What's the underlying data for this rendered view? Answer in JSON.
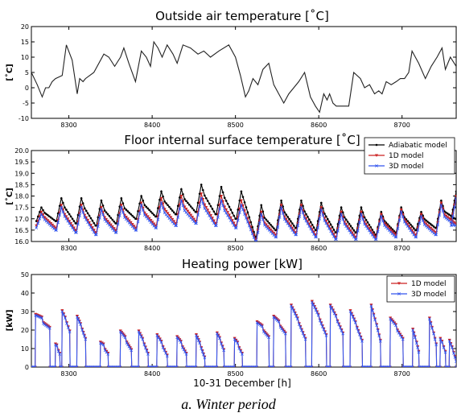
{
  "figure": {
    "xlabel": "10-31 December [h]",
    "caption": "a.    Winter period"
  },
  "chart_data": [
    {
      "type": "line",
      "title": "Outside air temperature [˚C]",
      "xlabel": "",
      "ylabel": "[˚C]",
      "xlim": [
        8255,
        8765
      ],
      "ylim": [
        -10,
        20
      ],
      "xticks": [
        8300,
        8400,
        8500,
        8600,
        8700
      ],
      "yticks": [
        -10,
        -5,
        0,
        5,
        10,
        15,
        20
      ],
      "grid": false,
      "legend": "none",
      "series": [
        {
          "color": "#222222",
          "marker": "none",
          "x": [
            8255,
            8262,
            8268,
            8272,
            8276,
            8280,
            8284,
            8292,
            8297,
            8304,
            8310,
            8313,
            8317,
            8320,
            8330,
            8342,
            8348,
            8355,
            8362,
            8366,
            8372,
            8380,
            8387,
            8393,
            8398,
            8402,
            8407,
            8412,
            8418,
            8425,
            8430,
            8437,
            8446,
            8455,
            8462,
            8470,
            8480,
            8492,
            8500,
            8506,
            8512,
            8516,
            8521,
            8527,
            8533,
            8540,
            8546,
            8552,
            8558,
            8564,
            8570,
            8576,
            8583,
            8590,
            8596,
            8601,
            8606,
            8610,
            8613,
            8617,
            8621,
            8627,
            8636,
            8642,
            8650,
            8655,
            8661,
            8667,
            8672,
            8676,
            8681,
            8687,
            8693,
            8698,
            8703,
            8708,
            8712,
            8720,
            8728,
            8735,
            8742,
            8748,
            8752,
            8758,
            8765
          ],
          "values": [
            5,
            1,
            -3,
            0,
            0,
            2,
            3,
            4,
            14,
            9,
            -2,
            3,
            2,
            3,
            5,
            11,
            10,
            7,
            10,
            13,
            8,
            2,
            12,
            10,
            7,
            15,
            13,
            10,
            14,
            11,
            8,
            14,
            13,
            11,
            12,
            10,
            12,
            14,
            10,
            4,
            -3,
            -1,
            3,
            1,
            6,
            8,
            1,
            -2,
            -5,
            -2,
            0,
            2,
            5,
            -3,
            -6,
            -8,
            -2,
            -4,
            -2,
            -5,
            -6,
            -6,
            -6,
            5,
            3,
            0,
            1,
            -2,
            -1,
            -2,
            2,
            1,
            2,
            3,
            3,
            5,
            12,
            8,
            3,
            7,
            10,
            13,
            6,
            10,
            7
          ]
        }
      ]
    },
    {
      "type": "line",
      "title": "Floor internal surface temperature [˚C]",
      "xlabel": "",
      "ylabel": "[˚C]",
      "xlim": [
        8255,
        8765
      ],
      "ylim": [
        16.0,
        20.0
      ],
      "xticks": [
        8300,
        8400,
        8500,
        8600,
        8700
      ],
      "yticks": [
        16.0,
        16.5,
        17.0,
        17.5,
        18.0,
        18.5,
        19.0,
        19.5,
        20.0
      ],
      "grid": false,
      "legend": "top-right",
      "period_hours": 24,
      "peak_x": [
        8267,
        8291,
        8315,
        8339,
        8363,
        8387,
        8411,
        8435,
        8459,
        8483,
        8507,
        8531,
        8555,
        8579,
        8603,
        8627,
        8651,
        8675,
        8699,
        8723,
        8747,
        8765
      ],
      "series": [
        {
          "name": "Adiabatic model",
          "color": "#000000",
          "marker": "dot",
          "peaks": [
            17.5,
            17.9,
            17.9,
            17.8,
            17.9,
            18.0,
            18.2,
            18.3,
            18.5,
            18.4,
            18.2,
            17.6,
            17.8,
            17.8,
            17.7,
            17.5,
            17.5,
            17.3,
            17.5,
            17.3,
            17.8,
            18.2
          ],
          "troughs": [
            16.9,
            16.9,
            16.8,
            16.7,
            16.8,
            17.0,
            17.1,
            17.2,
            17.3,
            17.2,
            17.0,
            16.2,
            16.5,
            16.6,
            16.5,
            16.4,
            16.4,
            16.3,
            16.4,
            16.5,
            16.6,
            17.0
          ]
        },
        {
          "name": "1D model",
          "color": "#cc2222",
          "marker": "triangle-down",
          "peaks": [
            17.3,
            17.6,
            17.6,
            17.5,
            17.6,
            17.7,
            17.9,
            18.0,
            18.1,
            18.0,
            17.8,
            17.3,
            17.6,
            17.6,
            17.5,
            17.3,
            17.3,
            17.2,
            17.4,
            17.2,
            17.7,
            18.0
          ],
          "troughs": [
            16.7,
            16.6,
            16.5,
            16.4,
            16.5,
            16.6,
            16.7,
            16.8,
            16.9,
            16.8,
            16.7,
            16.1,
            16.3,
            16.4,
            16.3,
            16.2,
            16.2,
            16.2,
            16.3,
            16.3,
            16.4,
            16.8
          ]
        },
        {
          "name": "3D model",
          "color": "#3355ee",
          "marker": "x",
          "peaks": [
            17.2,
            17.5,
            17.5,
            17.4,
            17.5,
            17.6,
            17.7,
            17.8,
            17.9,
            17.8,
            17.6,
            17.2,
            17.5,
            17.5,
            17.4,
            17.2,
            17.2,
            17.1,
            17.3,
            17.1,
            17.6,
            17.9
          ],
          "troughs": [
            16.6,
            16.5,
            16.4,
            16.3,
            16.4,
            16.5,
            16.6,
            16.7,
            16.8,
            16.7,
            16.6,
            16.0,
            16.2,
            16.3,
            16.2,
            16.1,
            16.1,
            16.1,
            16.2,
            16.2,
            16.3,
            16.7
          ]
        }
      ]
    },
    {
      "type": "line",
      "title": "Heating power [kW]",
      "xlabel": "10-31 December [h]",
      "ylabel": "[kW]",
      "xlim": [
        8255,
        8765
      ],
      "ylim": [
        0,
        50
      ],
      "xticks": [
        8300,
        8400,
        8500,
        8600,
        8700
      ],
      "yticks": [
        0,
        10,
        20,
        30,
        40,
        50
      ],
      "grid": false,
      "legend": "top-right",
      "series_layout": "on-off heating pulses; the 1D and 3D curves nearly coincide",
      "pulses": [
        {
          "on": 8260,
          "off": 8277,
          "start": 28,
          "end": 21
        },
        {
          "on": 8284,
          "off": 8289,
          "start": 12,
          "end": 7
        },
        {
          "on": 8292,
          "off": 8301,
          "start": 30,
          "end": 19
        },
        {
          "on": 8310,
          "off": 8320,
          "start": 27,
          "end": 15
        },
        {
          "on": 8338,
          "off": 8347,
          "start": 13,
          "end": 7
        },
        {
          "on": 8362,
          "off": 8375,
          "start": 19,
          "end": 9
        },
        {
          "on": 8384,
          "off": 8395,
          "start": 19,
          "end": 7
        },
        {
          "on": 8406,
          "off": 8418,
          "start": 17,
          "end": 6
        },
        {
          "on": 8430,
          "off": 8441,
          "start": 16,
          "end": 7
        },
        {
          "on": 8453,
          "off": 8463,
          "start": 17,
          "end": 5
        },
        {
          "on": 8478,
          "off": 8486,
          "start": 18,
          "end": 9
        },
        {
          "on": 8499,
          "off": 8508,
          "start": 15,
          "end": 7
        },
        {
          "on": 8526,
          "off": 8540,
          "start": 24,
          "end": 16
        },
        {
          "on": 8546,
          "off": 8560,
          "start": 27,
          "end": 18
        },
        {
          "on": 8567,
          "off": 8584,
          "start": 33,
          "end": 15
        },
        {
          "on": 8592,
          "off": 8609,
          "start": 35,
          "end": 17
        },
        {
          "on": 8614,
          "off": 8629,
          "start": 33,
          "end": 18
        },
        {
          "on": 8638,
          "off": 8652,
          "start": 30,
          "end": 14
        },
        {
          "on": 8663,
          "off": 8674,
          "start": 33,
          "end": 14
        },
        {
          "on": 8686,
          "off": 8701,
          "start": 26,
          "end": 15
        },
        {
          "on": 8713,
          "off": 8720,
          "start": 20,
          "end": 8
        },
        {
          "on": 8733,
          "off": 8741,
          "start": 26,
          "end": 12
        },
        {
          "on": 8746,
          "off": 8752,
          "start": 15,
          "end": 8
        },
        {
          "on": 8757,
          "off": 8765,
          "start": 14,
          "end": 3
        }
      ],
      "series": [
        {
          "name": "1D model",
          "color": "#cc2222",
          "marker": "triangle-down",
          "offset": 0.6
        },
        {
          "name": "3D model",
          "color": "#3355ee",
          "marker": "x",
          "offset": 0
        }
      ]
    }
  ]
}
